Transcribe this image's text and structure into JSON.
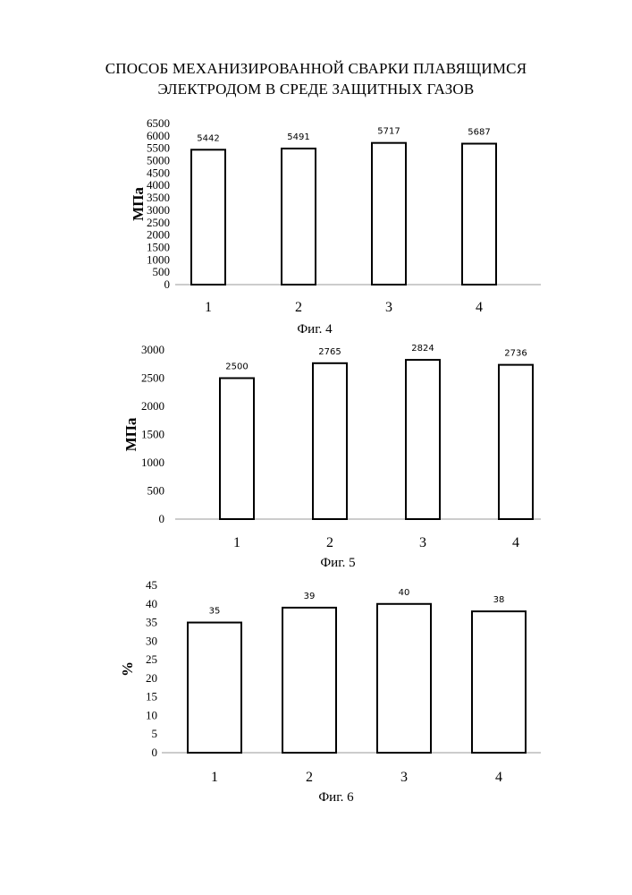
{
  "page": {
    "title_line1": "СПОСОБ МЕХАНИЗИРОВАННОЙ СВАРКИ ПЛАВЯЩИМСЯ",
    "title_line2": "ЭЛЕКТРОДОМ В СРЕДЕ ЗАЩИТНЫХ ГАЗОВ"
  },
  "chart_data": [
    {
      "type": "bar",
      "caption": "Фиг. 4",
      "ylabel": "МПа",
      "xlabel": "",
      "categories": [
        "1",
        "2",
        "3",
        "4"
      ],
      "values": [
        5442,
        5491,
        5717,
        5687
      ],
      "data_labels": [
        "5442",
        "5491",
        "5717",
        "5687"
      ],
      "ylim": [
        0,
        6500
      ],
      "yticks": [
        0,
        500,
        1000,
        1500,
        2000,
        2500,
        3000,
        3500,
        4000,
        4500,
        5000,
        5500,
        6000,
        6500
      ],
      "grid": false,
      "legend": "none"
    },
    {
      "type": "bar",
      "caption": "Фиг. 5",
      "ylabel": "МПа",
      "xlabel": "",
      "categories": [
        "1",
        "2",
        "3",
        "4"
      ],
      "values": [
        2500,
        2765,
        2824,
        2736
      ],
      "data_labels": [
        "2500",
        "2765",
        "2824",
        "2736"
      ],
      "ylim": [
        0,
        3000
      ],
      "yticks": [
        0,
        500,
        1000,
        1500,
        2000,
        2500,
        3000
      ],
      "grid": false,
      "legend": "none"
    },
    {
      "type": "bar",
      "caption": "Фиг. 6",
      "ylabel": "%",
      "xlabel": "",
      "categories": [
        "1",
        "2",
        "3",
        "4"
      ],
      "values": [
        35,
        39,
        40,
        38
      ],
      "data_labels": [
        "35",
        "39",
        "40",
        "38"
      ],
      "ylim": [
        0,
        45
      ],
      "yticks": [
        0,
        5,
        10,
        15,
        20,
        25,
        30,
        35,
        40,
        45
      ],
      "grid": false,
      "legend": "none"
    }
  ]
}
